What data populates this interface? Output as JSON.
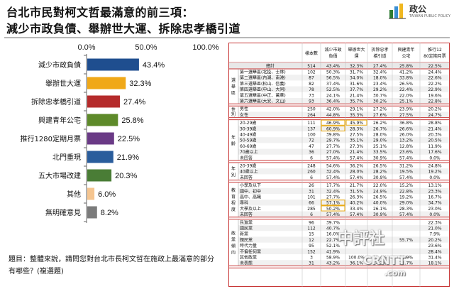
{
  "title": {
    "line1": "台北市民對柯文哲最滿意的前三項：",
    "line2": "減少市政負債、舉辦世大運、拆除忠孝橋引道"
  },
  "logo": {
    "name": "台灣指標民調",
    "short": "政公",
    "sub": "TAIWAN PUBLIC POLICY"
  },
  "question": "題目：整體來說，請問您對台北市長柯文哲在施政上最滿意的部分有哪些？(複選題)",
  "watermark": {
    "line1": "中評社",
    "line2": "CRNTT",
    "line3": ".com"
  },
  "chart_data": {
    "type": "bar",
    "orientation": "horizontal",
    "xlim": [
      0,
      100
    ],
    "ticks": [
      "0.0%",
      "50.0%",
      "100.0%"
    ],
    "categories": [
      "減少市政負債",
      "舉辦世大運",
      "拆除忠孝橋引道",
      "興建青年公宅",
      "推行1280定期月票",
      "北門重現",
      "五大市場改建",
      "其他",
      "無明確意見"
    ],
    "values": [
      43.4,
      32.3,
      27.4,
      25.8,
      22.5,
      21.9,
      20.3,
      6.0,
      8.2
    ],
    "labels": [
      "43.4%",
      "32.3%",
      "27.4%",
      "25.8%",
      "22.5%",
      "21.9%",
      "20.3%",
      "6.0%",
      "8.2%"
    ],
    "colors": [
      "#1f4e8f",
      "#f0a818",
      "#b52b2b",
      "#5e8a2a",
      "#6a3a86",
      "#2a5d9c",
      "#4a7d36",
      "#f5c590",
      "#7b7b7b"
    ],
    "grid": false
  },
  "table": {
    "header": [
      "",
      "",
      "樣本數",
      "減少市政負債",
      "舉辦世大運",
      "拆除忠孝橋引道",
      "興建青年公宅",
      "推行1280定期月票"
    ],
    "total": [
      "總計",
      "514",
      "43.4%",
      "32.3%",
      "27.4%",
      "25.8%",
      "22.5%"
    ],
    "groups": [
      {
        "label": "選舉區",
        "rows": [
          [
            "第一選舉區(北投、士林)",
            "102",
            "50.3%",
            "31.7%",
            "32.4%",
            "41.2%",
            "24.4%"
          ],
          [
            "第二選舉區(內湖、南港)",
            "87",
            "56.5%",
            "34.0%",
            "18.0%",
            "33.8%",
            "22.6%"
          ],
          [
            "第三選舉區(松山、信義)",
            "82",
            "37.4%",
            "31.6%",
            "23.4%",
            "26.5%",
            "22.2%"
          ],
          [
            "第四選舉區(中山、大同)",
            "78",
            "52.5%",
            "37.7%",
            "29.2%",
            "22.4%",
            "22.9%"
          ],
          [
            "第五選舉區(中正、萬華)",
            "73",
            "24.1%",
            "21.4%",
            "30.7%",
            "22.0%",
            "19.6%"
          ],
          [
            "第六選舉區(大安、文山)",
            "93",
            "36.4%",
            "35.7%",
            "30.2%",
            "25.1%",
            "22.8%"
          ]
        ]
      },
      {
        "label": "性別",
        "rows": [
          [
            "男性",
            "250",
            "42.0%",
            "29.1%",
            "27.2%",
            "23.9%",
            "20.2%"
          ],
          [
            "女性",
            "264",
            "44.8%",
            "35.3%",
            "27.6%",
            "27.5%",
            "24.7%"
          ]
        ]
      },
      {
        "label": "年齡",
        "rows": [
          [
            "20-29歲",
            "111",
            "46.9%",
            "45.9%",
            "26.2%",
            "36.8%",
            "28.8%"
          ],
          [
            "30-39歲",
            "137",
            "60.9%",
            "28.3%",
            "26.7%",
            "26.6%",
            "21.4%"
          ],
          [
            "40-49歲",
            "100",
            "39.8%",
            "27.5%",
            "28.0%",
            "26.0%",
            "20.3%"
          ],
          [
            "50-59歲",
            "72",
            "29.7%",
            "35.1%",
            "29.0%",
            "13.2%",
            "20.5%"
          ],
          [
            "60-69歲",
            "47",
            "27.7%",
            "27.3%",
            "25.1%",
            "12.8%",
            "11.9%"
          ],
          [
            "70歲以上",
            "36",
            "27.0%",
            "21.4%",
            "33.5%",
            "23.6%",
            "17.6%"
          ],
          [
            "未回答",
            "6",
            "57.4%",
            "57.4%",
            "30.9%",
            "57.4%",
            "0.0%"
          ]
        ]
      },
      {
        "label": "年別",
        "rows": [
          [
            "20-39歲",
            "248",
            "54.6%",
            "36.2%",
            "26.5%",
            "31.2%",
            "24.8%"
          ],
          [
            "40歲以上",
            "260",
            "32.4%",
            "28.0%",
            "28.2%",
            "19.5%",
            "19.2%"
          ],
          [
            "未回答",
            "6",
            "57.4%",
            "57.4%",
            "30.9%",
            "57.4%",
            "0.0%"
          ]
        ]
      },
      {
        "label": "教育程度",
        "rows": [
          [
            "小學及以下",
            "26",
            "17.7%",
            "21.7%",
            "22.0%",
            "15.2%",
            "13.1%"
          ],
          [
            "國中、初中",
            "31",
            "32.4%",
            "31.5%",
            "24.9%",
            "22.8%",
            "23.3%"
          ],
          [
            "高中、高職",
            "101",
            "27.7%",
            "26.3%",
            "26.5%",
            "19.2%",
            "16.7%"
          ],
          [
            "專科",
            "66",
            "57.1%",
            "40.2%",
            "40.0%",
            "29.0%",
            "34.7%"
          ],
          [
            "大學及以上",
            "285",
            "50.2%",
            "33.4%",
            "26.1%",
            "28.3%",
            "23.0%"
          ],
          [
            "未回答",
            "6",
            "57.4%",
            "57.4%",
            "30.9%",
            "57.4%",
            "0.0%"
          ]
        ]
      },
      {
        "label": "政黨傾向",
        "rows": [
          [
            "民進黨",
            "96",
            "39.7%",
            "",
            "",
            "",
            "22.3%"
          ],
          [
            "國民黨",
            "112",
            "40.7%",
            "",
            "",
            "",
            "21.0%"
          ],
          [
            "新黨",
            "15",
            "16.0%",
            "",
            "",
            "",
            "7.9%"
          ],
          [
            "親民黨",
            "12",
            "22.7%",
            "",
            "",
            "55.7%",
            "20.2%"
          ],
          [
            "時代力量",
            "95",
            "52.1%",
            "",
            "",
            "",
            "23.6%"
          ],
          [
            "不偏任何黨",
            "152",
            "41.9%",
            "",
            "",
            "",
            "28.4%"
          ],
          [
            "其他政黨",
            "3",
            "58.9%",
            "100.0%",
            "31.4%",
            "58.9%",
            "31.4%"
          ],
          [
            "未表態",
            "31",
            "43.2%",
            "36.1%",
            "14.2%",
            "21.7%",
            "18.1%"
          ]
        ]
      }
    ]
  }
}
